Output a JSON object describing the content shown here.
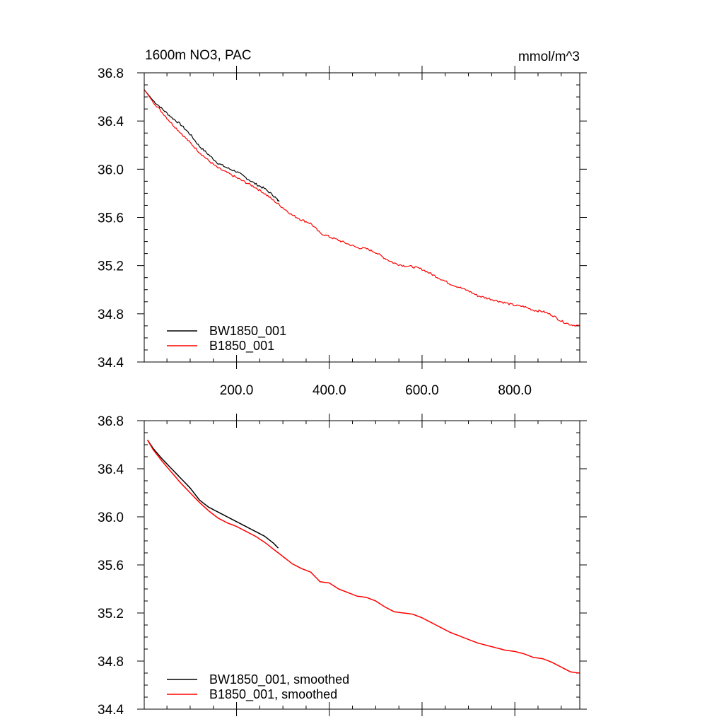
{
  "chart_data": [
    {
      "type": "line",
      "title": "1600m NO3, PAC",
      "units_label": "mmol/m^3",
      "xlim": [
        1,
        940
      ],
      "ylim": [
        34.4,
        36.8
      ],
      "x_ticks": [
        200,
        400,
        600,
        800
      ],
      "x_tick_labels": [
        "200.0",
        "400.0",
        "600.0",
        "800.0"
      ],
      "y_ticks": [
        34.4,
        34.8,
        35.2,
        35.6,
        36.0,
        36.4,
        36.8
      ],
      "y_tick_labels": [
        "34.4",
        "34.8",
        "35.2",
        "35.6",
        "36.0",
        "36.4",
        "36.8"
      ],
      "legend_position": "bottom-left",
      "series": [
        {
          "name": "BW1850_001",
          "color": "#000000",
          "x": [
            1,
            20,
            40,
            60,
            80,
            100,
            120,
            140,
            160,
            180,
            200,
            220,
            240,
            260,
            280,
            292
          ],
          "y": [
            36.66,
            36.57,
            36.5,
            36.43,
            36.37,
            36.29,
            36.19,
            36.12,
            36.05,
            36.01,
            35.98,
            35.93,
            35.88,
            35.84,
            35.78,
            35.73
          ]
        },
        {
          "name": "B1850_001",
          "color": "#ff0000",
          "x": [
            1,
            20,
            40,
            60,
            80,
            100,
            120,
            140,
            160,
            180,
            200,
            220,
            240,
            260,
            280,
            300,
            320,
            340,
            360,
            380,
            400,
            420,
            440,
            460,
            480,
            500,
            520,
            540,
            560,
            580,
            600,
            620,
            640,
            660,
            680,
            700,
            720,
            740,
            760,
            780,
            800,
            820,
            840,
            860,
            880,
            900,
            920,
            940
          ],
          "y": [
            36.66,
            36.56,
            36.47,
            36.38,
            36.3,
            36.22,
            36.14,
            36.07,
            36.01,
            35.97,
            35.93,
            35.89,
            35.85,
            35.8,
            35.74,
            35.68,
            35.62,
            35.58,
            35.55,
            35.47,
            35.44,
            35.41,
            35.38,
            35.35,
            35.34,
            35.31,
            35.26,
            35.22,
            35.2,
            35.19,
            35.17,
            35.13,
            35.09,
            35.05,
            35.02,
            34.99,
            34.95,
            34.93,
            34.91,
            34.89,
            34.87,
            34.86,
            34.83,
            34.82,
            34.79,
            34.74,
            34.71,
            34.7
          ]
        }
      ]
    },
    {
      "type": "line",
      "xlim": [
        1,
        940
      ],
      "ylim": [
        34.4,
        36.8
      ],
      "x_ticks": [
        200,
        400,
        600,
        800
      ],
      "y_ticks": [
        34.4,
        34.8,
        35.2,
        35.6,
        36.0,
        36.4,
        36.8
      ],
      "y_tick_labels": [
        "34.4",
        "34.8",
        "35.2",
        "35.6",
        "36.0",
        "36.4",
        "36.8"
      ],
      "legend_position": "bottom-left",
      "series": [
        {
          "name": "BW1850_001, smoothed",
          "color": "#000000",
          "x": [
            8,
            20,
            40,
            60,
            80,
            100,
            120,
            140,
            160,
            180,
            200,
            220,
            240,
            260,
            280,
            290
          ],
          "y": [
            36.64,
            36.57,
            36.48,
            36.4,
            36.32,
            36.24,
            36.14,
            36.08,
            36.04,
            36.0,
            35.96,
            35.92,
            35.88,
            35.84,
            35.78,
            35.74
          ]
        },
        {
          "name": "B1850_001, smoothed",
          "color": "#ff0000",
          "x": [
            8,
            20,
            40,
            60,
            80,
            100,
            120,
            140,
            160,
            180,
            200,
            220,
            240,
            260,
            280,
            300,
            320,
            340,
            360,
            380,
            400,
            420,
            440,
            460,
            480,
            500,
            520,
            540,
            560,
            580,
            600,
            620,
            640,
            660,
            680,
            700,
            720,
            740,
            760,
            780,
            800,
            820,
            840,
            860,
            880,
            900,
            920,
            940
          ],
          "y": [
            36.64,
            36.56,
            36.46,
            36.37,
            36.28,
            36.2,
            36.12,
            36.05,
            35.99,
            35.95,
            35.92,
            35.88,
            35.84,
            35.79,
            35.73,
            35.67,
            35.61,
            35.57,
            35.54,
            35.46,
            35.45,
            35.4,
            35.37,
            35.34,
            35.33,
            35.3,
            35.25,
            35.21,
            35.2,
            35.19,
            35.16,
            35.12,
            35.08,
            35.04,
            35.01,
            34.98,
            34.95,
            34.93,
            34.91,
            34.89,
            34.88,
            34.86,
            34.83,
            34.82,
            34.79,
            34.75,
            34.71,
            34.7
          ]
        }
      ]
    }
  ]
}
